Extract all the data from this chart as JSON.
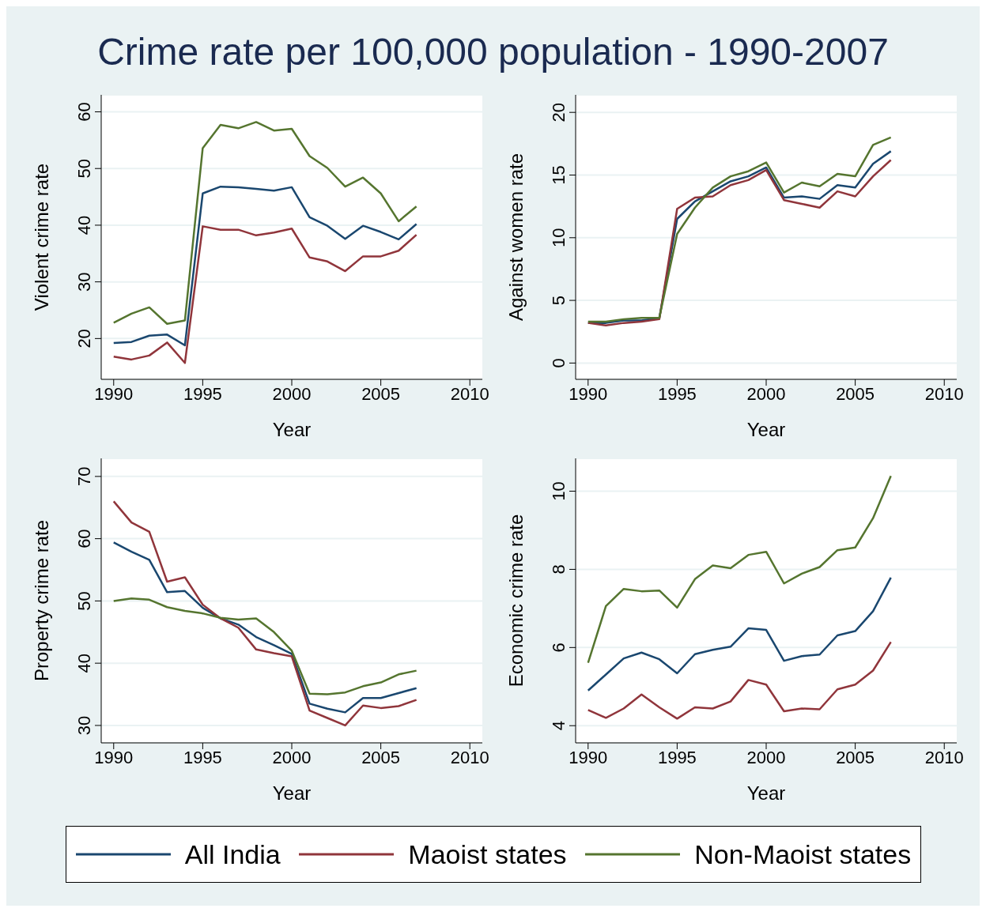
{
  "chart_data": [
    {
      "type": "line",
      "title": "Crime rate per 100,000 population - 1990-2007",
      "xlabel": "Year",
      "ylabel": "Violent crime rate",
      "x": [
        1990,
        1991,
        1992,
        1993,
        1994,
        1995,
        1996,
        1997,
        1998,
        1999,
        2000,
        2001,
        2002,
        2003,
        2004,
        2005,
        2006,
        2007
      ],
      "xlim": [
        1989.3,
        2010.7
      ],
      "xticks": [
        1990,
        1995,
        2000,
        2005,
        2010
      ],
      "ylim": [
        12.8,
        63
      ],
      "yticks": [
        20,
        30,
        40,
        50,
        60
      ],
      "grid": "y",
      "legend": "bottom",
      "series": [
        {
          "name": "All India",
          "color": "#1a476f",
          "values": [
            19.2,
            19.4,
            20.5,
            20.7,
            18.8,
            45.6,
            46.8,
            46.7,
            46.4,
            46.1,
            46.7,
            41.4,
            39.9,
            37.6,
            39.9,
            38.8,
            37.5,
            40.2
          ]
        },
        {
          "name": "Maoist states",
          "color": "#90353b",
          "values": [
            16.8,
            16.3,
            17.0,
            19.3,
            15.7,
            39.8,
            39.2,
            39.2,
            38.2,
            38.7,
            39.4,
            34.3,
            33.6,
            31.9,
            34.5,
            34.5,
            35.5,
            38.3
          ]
        },
        {
          "name": "Non-Maoist states",
          "color": "#55752f",
          "values": [
            22.8,
            24.4,
            25.5,
            22.6,
            23.2,
            53.6,
            57.7,
            57.1,
            58.2,
            56.7,
            57.0,
            52.2,
            50.1,
            46.8,
            48.4,
            45.6,
            40.7,
            43.3
          ]
        }
      ]
    },
    {
      "type": "line",
      "xlabel": "Year",
      "ylabel": "Against women  rate",
      "x": [
        1990,
        1991,
        1992,
        1993,
        1994,
        1995,
        1996,
        1997,
        1998,
        1999,
        2000,
        2001,
        2002,
        2003,
        2004,
        2005,
        2006,
        2007
      ],
      "xlim": [
        1989.3,
        2010.7
      ],
      "xticks": [
        1990,
        1995,
        2000,
        2005,
        2010
      ],
      "ylim": [
        -1.3,
        21.4
      ],
      "yticks": [
        0,
        5,
        10,
        15,
        20
      ],
      "grid": "y",
      "series": [
        {
          "color": "#1a476f",
          "values": [
            3.2,
            3.2,
            3.4,
            3.4,
            3.6,
            11.5,
            12.9,
            13.7,
            14.5,
            14.9,
            15.6,
            13.2,
            13.3,
            13.1,
            14.2,
            14.0,
            15.9,
            16.9
          ]
        },
        {
          "color": "#90353b",
          "values": [
            3.2,
            3.0,
            3.2,
            3.3,
            3.5,
            12.3,
            13.2,
            13.3,
            14.2,
            14.6,
            15.4,
            13.0,
            12.7,
            12.4,
            13.7,
            13.3,
            14.9,
            16.2
          ]
        },
        {
          "color": "#55752f",
          "values": [
            3.3,
            3.3,
            3.5,
            3.6,
            3.6,
            10.3,
            12.4,
            14.0,
            14.9,
            15.3,
            16.0,
            13.6,
            14.4,
            14.1,
            15.1,
            14.9,
            17.4,
            18.0
          ]
        }
      ]
    },
    {
      "type": "line",
      "xlabel": "Year",
      "ylabel": "Property crime rate",
      "x": [
        1990,
        1991,
        1992,
        1993,
        1994,
        1995,
        1996,
        1997,
        1998,
        1999,
        2000,
        2001,
        2002,
        2003,
        2004,
        2005,
        2006,
        2007
      ],
      "xlim": [
        1989.3,
        2010.7
      ],
      "xticks": [
        1990,
        1995,
        2000,
        2005,
        2010
      ],
      "ylim": [
        27.2,
        72.9
      ],
      "yticks": [
        30,
        40,
        50,
        60,
        70
      ],
      "grid": "y",
      "series": [
        {
          "color": "#1a476f",
          "values": [
            59.4,
            57.9,
            56.6,
            51.4,
            51.6,
            48.9,
            47.2,
            46.2,
            44.2,
            42.9,
            41.5,
            33.5,
            32.7,
            32.1,
            34.4,
            34.4,
            35.2,
            36.0
          ]
        },
        {
          "color": "#90353b",
          "values": [
            66.0,
            62.6,
            61.1,
            53.1,
            53.8,
            49.4,
            47.2,
            45.7,
            42.2,
            41.6,
            41.1,
            32.4,
            31.2,
            30.0,
            33.2,
            32.8,
            33.1,
            34.1
          ]
        },
        {
          "color": "#55752f",
          "values": [
            50.0,
            50.4,
            50.2,
            49.0,
            48.4,
            48.0,
            47.3,
            47.0,
            47.2,
            45.0,
            42.0,
            35.1,
            35.0,
            35.3,
            36.3,
            36.9,
            38.2,
            38.8
          ]
        }
      ]
    },
    {
      "type": "line",
      "xlabel": "Year",
      "ylabel": "Economic crime rate",
      "x": [
        1990,
        1991,
        1992,
        1993,
        1994,
        1995,
        1996,
        1997,
        1998,
        1999,
        2000,
        2001,
        2002,
        2003,
        2004,
        2005,
        2006,
        2007
      ],
      "xlim": [
        1989.3,
        2010.7
      ],
      "xticks": [
        1990,
        1995,
        2000,
        2005,
        2010
      ],
      "ylim": [
        3.56,
        10.84
      ],
      "yticks": [
        4,
        6,
        8,
        10
      ],
      "grid": "y",
      "series": [
        {
          "color": "#1a476f",
          "values": [
            4.9,
            5.31,
            5.72,
            5.87,
            5.7,
            5.34,
            5.83,
            5.94,
            6.02,
            6.49,
            6.45,
            5.66,
            5.78,
            5.82,
            6.31,
            6.42,
            6.93,
            7.79
          ]
        },
        {
          "color": "#90353b",
          "values": [
            4.4,
            4.2,
            4.44,
            4.8,
            4.47,
            4.18,
            4.47,
            4.44,
            4.62,
            5.17,
            5.05,
            4.37,
            4.44,
            4.42,
            4.93,
            5.05,
            5.41,
            6.14
          ]
        },
        {
          "color": "#55752f",
          "values": [
            5.61,
            7.06,
            7.5,
            7.44,
            7.46,
            7.02,
            7.75,
            8.1,
            8.03,
            8.37,
            8.45,
            7.64,
            7.89,
            8.06,
            8.49,
            8.56,
            9.31,
            10.39
          ]
        }
      ]
    }
  ]
}
